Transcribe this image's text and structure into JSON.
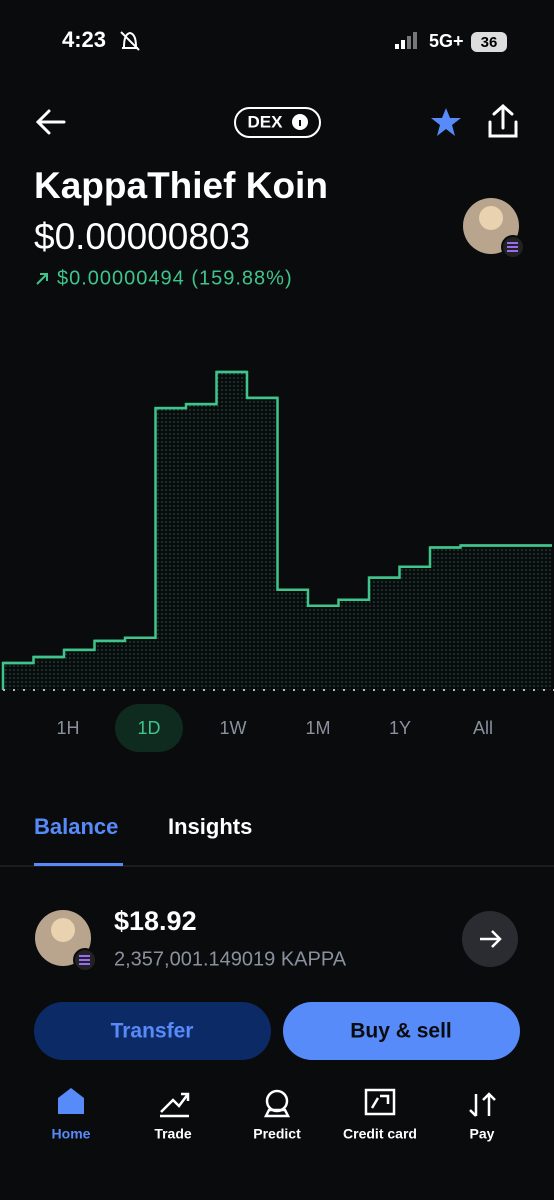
{
  "status_bar": {
    "time": "4:23",
    "network": "5G+",
    "battery": "36"
  },
  "header": {
    "badge": "DEX",
    "title": "KappaThief Koin",
    "price": "$0.00000803",
    "change": "$0.00000494 (159.88%)"
  },
  "chart_data": {
    "type": "line",
    "color": "#3fc48c",
    "values": [
      3.09e-06,
      3.34e-06,
      3.64e-06,
      4.02e-06,
      4.15e-06,
      1.381e-05,
      1.398e-05,
      1.533e-05,
      1.424e-05,
      6.17e-06,
      5.5e-06,
      5.75e-06,
      6.68e-06,
      7.14e-06,
      7.95e-06,
      8.03e-06,
      8.03e-06,
      8.03e-06
    ]
  },
  "ranges": [
    "1H",
    "1D",
    "1W",
    "1M",
    "1Y",
    "All"
  ],
  "tabs": [
    "Balance",
    "Insights"
  ],
  "balance": {
    "amount": "$18.92",
    "holding": "2,357,001.149019 KAPPA"
  },
  "buttons": [
    "Transfer",
    "Buy & sell"
  ],
  "nav": [
    "Home",
    "Trade",
    "Predict",
    "Credit card",
    "Pay"
  ]
}
